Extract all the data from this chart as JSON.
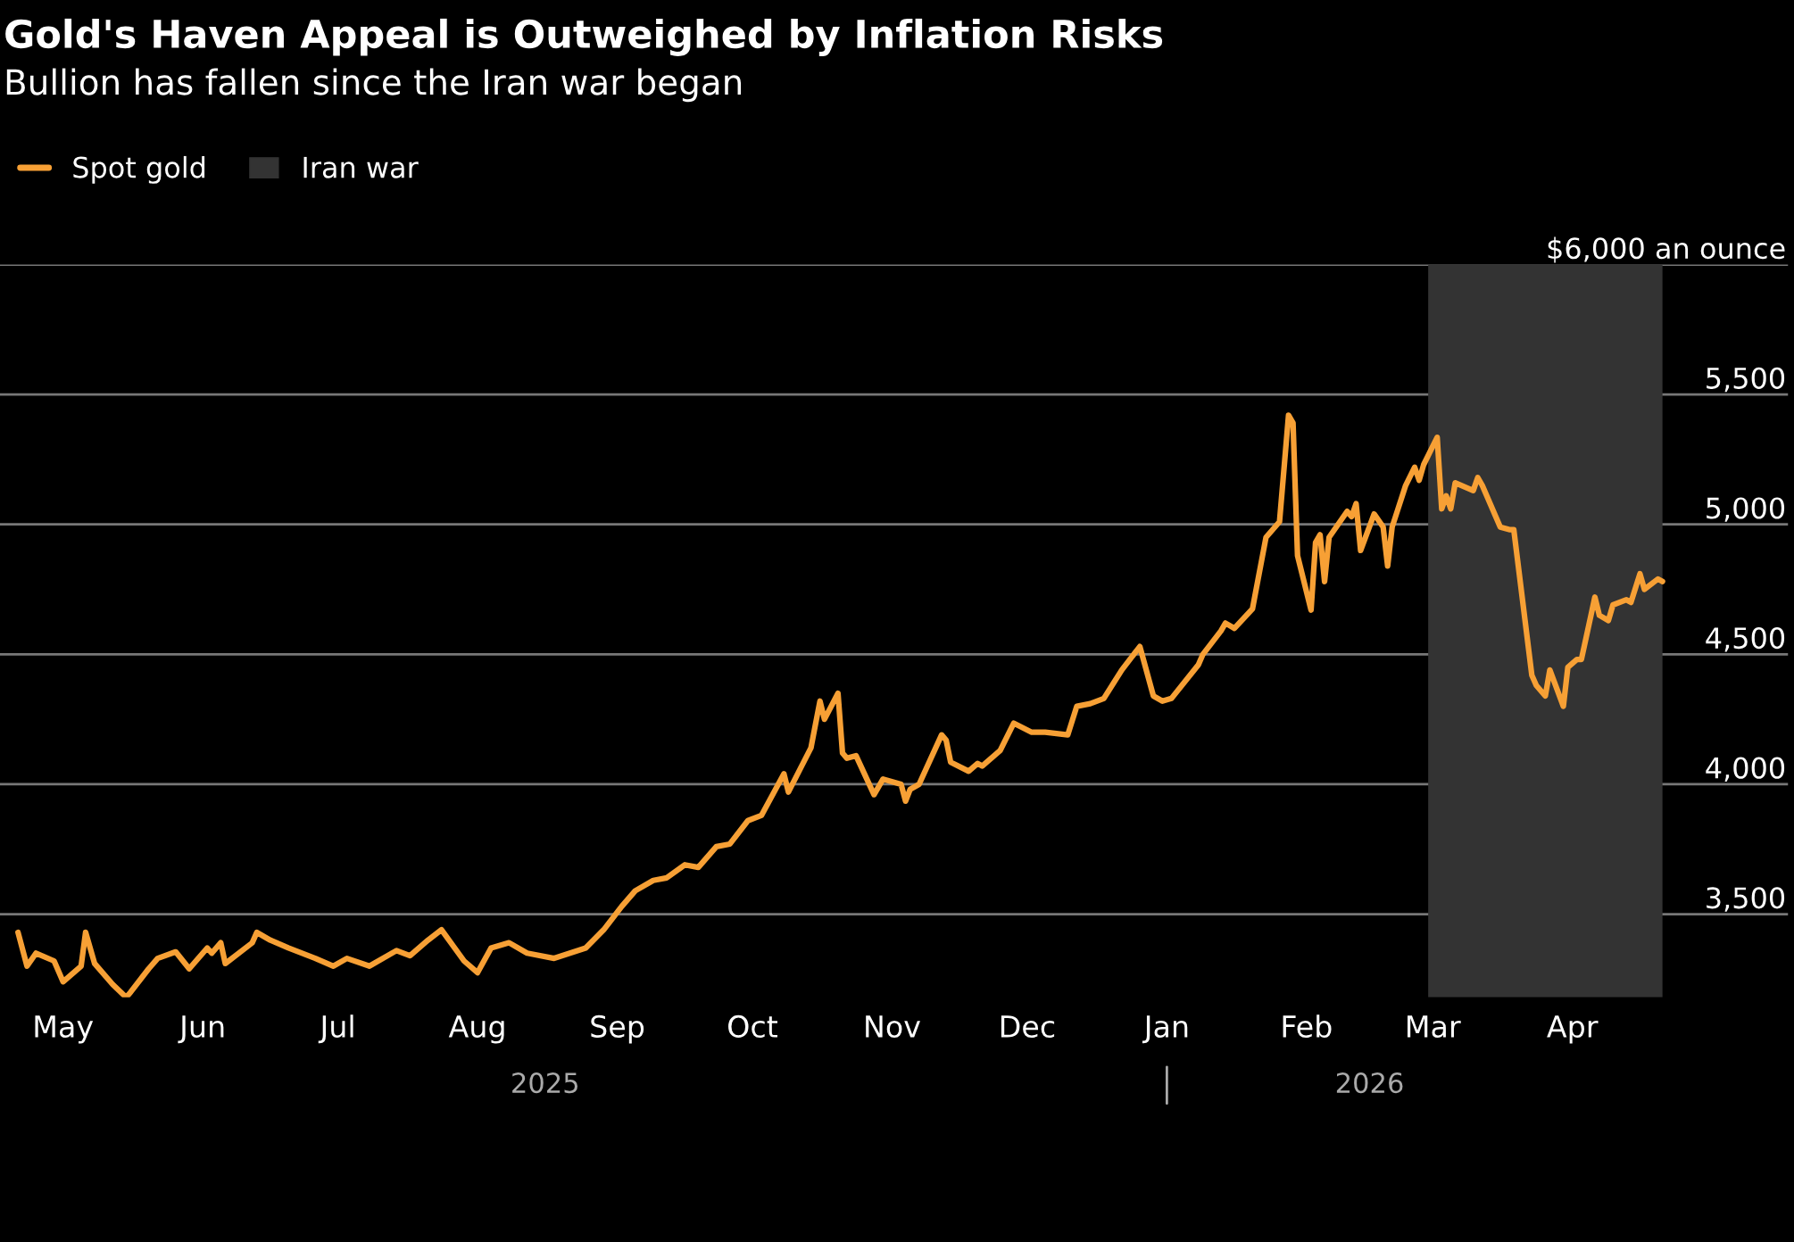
{
  "chart_data": {
    "type": "line",
    "title": "Gold's Haven Appeal is Outweighed by Inflation Risks",
    "subtitle": "Bullion has fallen since the Iran war began",
    "x": [
      "2025-04-21",
      "2025-04-23",
      "2025-04-25",
      "2025-04-29",
      "2025-05-01",
      "2025-05-05",
      "2025-05-06",
      "2025-05-08",
      "2025-05-12",
      "2025-05-15",
      "2025-05-16",
      "2025-05-20",
      "2025-05-22",
      "2025-05-26",
      "2025-05-29",
      "2025-06-02",
      "2025-06-03",
      "2025-06-05",
      "2025-06-06",
      "2025-06-12",
      "2025-06-13",
      "2025-06-16",
      "2025-06-20",
      "2025-06-26",
      "2025-06-30",
      "2025-07-03",
      "2025-07-08",
      "2025-07-14",
      "2025-07-17",
      "2025-07-21",
      "2025-07-24",
      "2025-07-29",
      "2025-08-01",
      "2025-08-04",
      "2025-08-08",
      "2025-08-12",
      "2025-08-18",
      "2025-08-25",
      "2025-08-29",
      "2025-09-02",
      "2025-09-05",
      "2025-09-09",
      "2025-09-12",
      "2025-09-16",
      "2025-09-19",
      "2025-09-23",
      "2025-09-26",
      "2025-09-30",
      "2025-10-03",
      "2025-10-08",
      "2025-10-09",
      "2025-10-14",
      "2025-10-16",
      "2025-10-17",
      "2025-10-20",
      "2025-10-21",
      "2025-10-22",
      "2025-10-24",
      "2025-10-28",
      "2025-10-30",
      "2025-11-03",
      "2025-11-04",
      "2025-11-05",
      "2025-11-07",
      "2025-11-12",
      "2025-11-13",
      "2025-11-14",
      "2025-11-18",
      "2025-11-20",
      "2025-11-21",
      "2025-11-25",
      "2025-11-28",
      "2025-12-02",
      "2025-12-05",
      "2025-12-10",
      "2025-12-12",
      "2025-12-15",
      "2025-12-18",
      "2025-12-22",
      "2025-12-26",
      "2025-12-29",
      "2025-12-31",
      "2026-01-02",
      "2026-01-08",
      "2026-01-09",
      "2026-01-13",
      "2026-01-14",
      "2026-01-16",
      "2026-01-20",
      "2026-01-23",
      "2026-01-26",
      "2026-01-28",
      "2026-01-29",
      "2026-01-30",
      "2026-02-02",
      "2026-02-03",
      "2026-02-04",
      "2026-02-05",
      "2026-02-06",
      "2026-02-10",
      "2026-02-11",
      "2026-02-12",
      "2026-02-13",
      "2026-02-16",
      "2026-02-18",
      "2026-02-19",
      "2026-02-20",
      "2026-02-23",
      "2026-02-25",
      "2026-02-26",
      "2026-02-27",
      "2026-03-02",
      "2026-03-03",
      "2026-03-04",
      "2026-03-05",
      "2026-03-06",
      "2026-03-10",
      "2026-03-11",
      "2026-03-12",
      "2026-03-16",
      "2026-03-18",
      "2026-03-19",
      "2026-03-23",
      "2026-03-24",
      "2026-03-26",
      "2026-03-27",
      "2026-03-30",
      "2026-03-31",
      "2026-04-02",
      "2026-04-03",
      "2026-04-06",
      "2026-04-07",
      "2026-04-09",
      "2026-04-10",
      "2026-04-13",
      "2026-04-14",
      "2026-04-16",
      "2026-04-17",
      "2026-04-20",
      "2026-04-21"
    ],
    "series": [
      {
        "name": "Spot gold",
        "color": "#f7a035",
        "values": [
          3430,
          3300,
          3350,
          3320,
          3240,
          3300,
          3430,
          3310,
          3230,
          3180,
          3200,
          3290,
          3330,
          3355,
          3290,
          3370,
          3350,
          3390,
          3310,
          3390,
          3430,
          3400,
          3370,
          3330,
          3300,
          3330,
          3300,
          3360,
          3340,
          3400,
          3440,
          3320,
          3275,
          3370,
          3390,
          3350,
          3330,
          3370,
          3440,
          3530,
          3590,
          3630,
          3640,
          3690,
          3680,
          3760,
          3770,
          3860,
          3880,
          4040,
          3970,
          4140,
          4320,
          4250,
          4350,
          4120,
          4100,
          4110,
          3960,
          4020,
          4000,
          3935,
          3980,
          4000,
          4190,
          4170,
          4085,
          4050,
          4080,
          4070,
          4130,
          4235,
          4200,
          4200,
          4190,
          4300,
          4310,
          4330,
          4440,
          4530,
          4340,
          4320,
          4330,
          4460,
          4500,
          4590,
          4620,
          4600,
          4675,
          4950,
          5010,
          5420,
          5390,
          4880,
          4670,
          4930,
          4960,
          4780,
          4950,
          5050,
          5030,
          5080,
          4900,
          5040,
          4990,
          4840,
          4990,
          5150,
          5220,
          5170,
          5230,
          5335,
          5060,
          5110,
          5060,
          5160,
          5130,
          5180,
          5150,
          4990,
          4980,
          4980,
          4420,
          4380,
          4340,
          4440,
          4300,
          4450,
          4480,
          4480,
          4720,
          4650,
          4630,
          4690,
          4710,
          4700,
          4810,
          4750,
          4790,
          4780
        ]
      }
    ],
    "bands": [
      {
        "axis": "x",
        "from": "2026-02-28",
        "to": "2026-04-21",
        "label": "Iran war",
        "color": "#333333"
      }
    ],
    "xlim": [
      "2025-04-17",
      "2026-05-19"
    ],
    "xticks": [
      {
        "value": "2025-05-01",
        "label": "May"
      },
      {
        "value": "2025-06-01",
        "label": "Jun"
      },
      {
        "value": "2025-07-01",
        "label": "Jul"
      },
      {
        "value": "2025-08-01",
        "label": "Aug"
      },
      {
        "value": "2025-09-01",
        "label": "Sep"
      },
      {
        "value": "2025-10-01",
        "label": "Oct"
      },
      {
        "value": "2025-11-01",
        "label": "Nov"
      },
      {
        "value": "2025-12-01",
        "label": "Dec"
      },
      {
        "value": "2026-01-01",
        "label": "Jan"
      },
      {
        "value": "2026-02-01",
        "label": "Feb"
      },
      {
        "value": "2026-03-01",
        "label": "Mar"
      },
      {
        "value": "2026-04-01",
        "label": "Apr"
      }
    ],
    "ylim": [
      3180,
      6000
    ],
    "yticks": [
      {
        "value": 3500,
        "label": "3,500"
      },
      {
        "value": 4000,
        "label": "4,000"
      },
      {
        "value": 4500,
        "label": "4,500"
      },
      {
        "value": 5000,
        "label": "5,000"
      },
      {
        "value": 5500,
        "label": "5,500"
      },
      {
        "value": 6000,
        "label": "$6,000 an ounce"
      }
    ],
    "annotations": [
      "2025",
      "2026"
    ],
    "grid": "y",
    "legend": "top left",
    "marker": "none",
    "line_style": "solid"
  }
}
